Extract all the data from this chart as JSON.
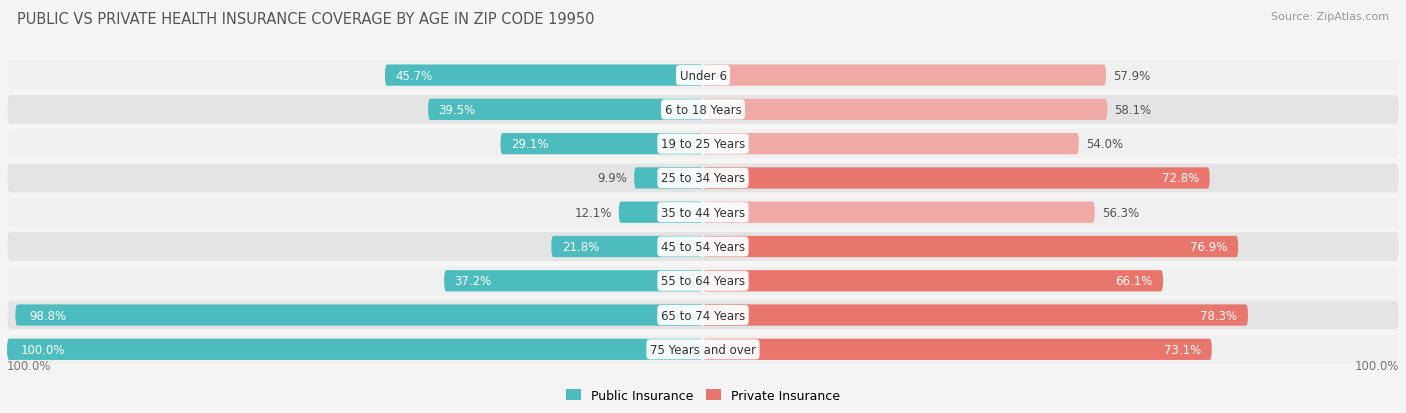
{
  "title": "PUBLIC VS PRIVATE HEALTH INSURANCE COVERAGE BY AGE IN ZIP CODE 19950",
  "source": "Source: ZipAtlas.com",
  "categories": [
    "Under 6",
    "6 to 18 Years",
    "19 to 25 Years",
    "25 to 34 Years",
    "35 to 44 Years",
    "45 to 54 Years",
    "55 to 64 Years",
    "65 to 74 Years",
    "75 Years and over"
  ],
  "public_values": [
    45.7,
    39.5,
    29.1,
    9.9,
    12.1,
    21.8,
    37.2,
    98.8,
    100.0
  ],
  "private_values": [
    57.9,
    58.1,
    54.0,
    72.8,
    56.3,
    76.9,
    66.1,
    78.3,
    73.1
  ],
  "public_color": "#4dbcbe",
  "private_color_strong": "#e8766d",
  "private_color_light": "#f0aaa5",
  "row_bg_color_odd": "#f0f0f0",
  "row_bg_color_even": "#e4e4e4",
  "title_fontsize": 10.5,
  "source_fontsize": 8,
  "label_fontsize": 8.5,
  "value_fontsize": 8.5,
  "background_color": "#f5f5f5",
  "max_value": 100.0,
  "private_strong_threshold": 65.0
}
